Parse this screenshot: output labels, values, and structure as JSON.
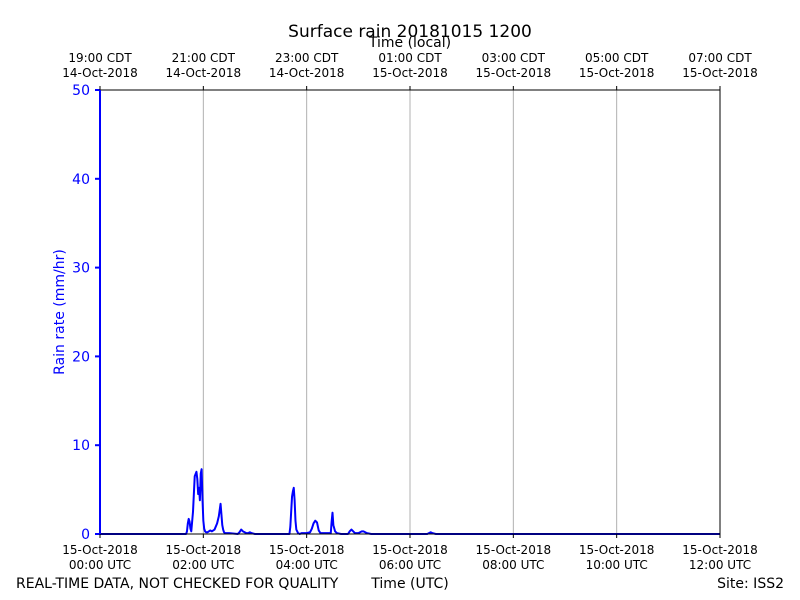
{
  "chart_data": {
    "type": "line",
    "title": "Surface rain 20181015 1200",
    "top_axis_label": "Time (local)",
    "top_tick_labels": [
      [
        "19:00 CDT",
        "14-Oct-2018"
      ],
      [
        "21:00 CDT",
        "14-Oct-2018"
      ],
      [
        "23:00 CDT",
        "14-Oct-2018"
      ],
      [
        "01:00 CDT",
        "15-Oct-2018"
      ],
      [
        "03:00 CDT",
        "15-Oct-2018"
      ],
      [
        "05:00 CDT",
        "15-Oct-2018"
      ],
      [
        "07:00 CDT",
        "15-Oct-2018"
      ]
    ],
    "bottom_tick_labels": [
      [
        "15-Oct-2018",
        "00:00 UTC"
      ],
      [
        "15-Oct-2018",
        "02:00 UTC"
      ],
      [
        "15-Oct-2018",
        "04:00 UTC"
      ],
      [
        "15-Oct-2018",
        "06:00 UTC"
      ],
      [
        "15-Oct-2018",
        "08:00 UTC"
      ],
      [
        "15-Oct-2018",
        "10:00 UTC"
      ],
      [
        "15-Oct-2018",
        "12:00 UTC"
      ]
    ],
    "xlabel": "Time (UTC)",
    "ylabel": "Rain rate (mm/hr)",
    "xlim": [
      "2018-10-15 00:00 UTC",
      "2018-10-15 12:00 UTC"
    ],
    "ylim": [
      0,
      50
    ],
    "yticks": [
      0,
      10,
      20,
      30,
      40,
      50
    ],
    "xgrid": true,
    "ygrid": false,
    "series": [
      {
        "color": "#0000ff",
        "x": [
          "00:00",
          "00:00",
          "00:01",
          "01:40",
          "01:41",
          "01:42",
          "01:43",
          "01:44",
          "01:45",
          "01:46",
          "01:48",
          "01:50",
          "01:52",
          "01:53",
          "01:54",
          "01:55",
          "01:56",
          "01:57",
          "01:58",
          "01:59",
          "02:00",
          "02:01",
          "02:02",
          "02:03",
          "02:05",
          "02:08",
          "02:10",
          "02:13",
          "02:16",
          "02:18",
          "02:20",
          "02:21",
          "02:22",
          "02:23",
          "02:24",
          "02:25",
          "02:27",
          "02:30",
          "02:40",
          "02:42",
          "02:44",
          "02:46",
          "02:50",
          "02:52",
          "02:54",
          "02:56",
          "03:00",
          "03:40",
          "03:41",
          "03:42",
          "03:43",
          "03:44",
          "03:45",
          "03:46",
          "03:47",
          "03:48",
          "03:50",
          "03:52",
          "03:54",
          "04:00",
          "04:04",
          "04:06",
          "04:08",
          "04:10",
          "04:12",
          "04:14",
          "04:16",
          "04:20",
          "04:25",
          "04:28",
          "04:29",
          "04:30",
          "04:31",
          "04:33",
          "04:35",
          "04:40",
          "04:48",
          "04:50",
          "04:52",
          "04:54",
          "04:56",
          "05:00",
          "05:02",
          "05:04",
          "05:06",
          "05:08",
          "05:10",
          "05:15",
          "06:20",
          "06:22",
          "06:24",
          "06:26",
          "06:30",
          "12:00"
        ],
        "y": [
          50,
          0,
          0,
          0,
          0.3,
          1.2,
          1.7,
          1.4,
          0.6,
          0.3,
          2.5,
          6.5,
          7.0,
          6.2,
          4.5,
          5.2,
          3.8,
          6.8,
          7.3,
          4.0,
          1.5,
          0.6,
          0.3,
          0.2,
          0.2,
          0.4,
          0.3,
          0.5,
          1.2,
          2.0,
          3.4,
          2.2,
          1.0,
          0.5,
          0.2,
          0.1,
          0.1,
          0.1,
          0,
          0.2,
          0.5,
          0.3,
          0.1,
          0.1,
          0.2,
          0.1,
          0,
          0,
          0.8,
          2.5,
          4.2,
          4.8,
          5.2,
          3.8,
          1.5,
          0.5,
          0.1,
          0,
          0.1,
          0.1,
          0.2,
          0.6,
          1.2,
          1.5,
          1.3,
          0.4,
          0.1,
          0.1,
          0.1,
          0.1,
          1.4,
          2.4,
          1.0,
          0.3,
          0.1,
          0,
          0,
          0.3,
          0.5,
          0.3,
          0.1,
          0.1,
          0.2,
          0.3,
          0.3,
          0.2,
          0.1,
          0,
          0,
          0.1,
          0.2,
          0.1,
          0,
          0
        ]
      }
    ]
  },
  "footer": {
    "left": "REAL-TIME DATA, NOT CHECKED FOR QUALITY",
    "center": "Time (UTC)",
    "right": "Site: ISS2"
  }
}
